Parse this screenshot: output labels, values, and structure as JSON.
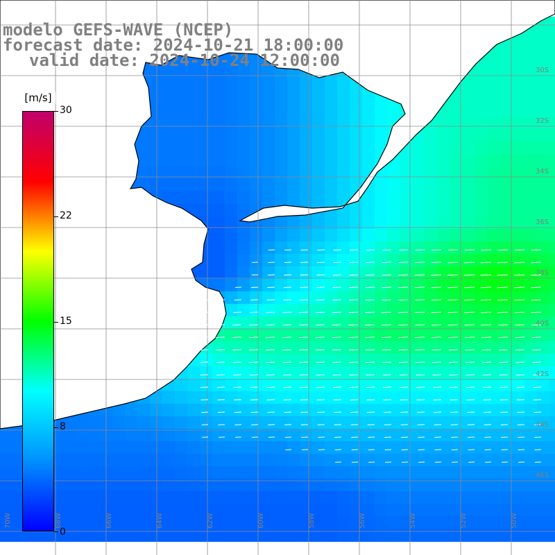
{
  "title": {
    "line1": "modelo GEFS-WAVE (NCEP)",
    "line2": "forecast date: 2024-10-21 18:00:00",
    "line3": "valid date: 2024-10-24 12:00:00"
  },
  "colorbar": {
    "unit": "[m/s]",
    "ticks": [
      "30",
      "22",
      "15",
      "8",
      "0"
    ],
    "colors": [
      "#0000ff",
      "#0090ff",
      "#00ffff",
      "#00ff00",
      "#ffff00",
      "#ff0000",
      "#c0006c"
    ]
  },
  "grid_labels": {
    "lat": [
      "30S",
      "32S",
      "34S",
      "36S",
      "38S",
      "40S",
      "42S",
      "44S",
      "46S"
    ],
    "lon": [
      "70W",
      "68W",
      "66W",
      "64W",
      "62W",
      "60W",
      "58W",
      "56W",
      "54W",
      "52W",
      "50W"
    ]
  },
  "style": {
    "land": "#ffffff",
    "coast": "#000000",
    "grid": "#8c8c8c",
    "arrow": "#ffffff",
    "label": "#808080"
  }
}
